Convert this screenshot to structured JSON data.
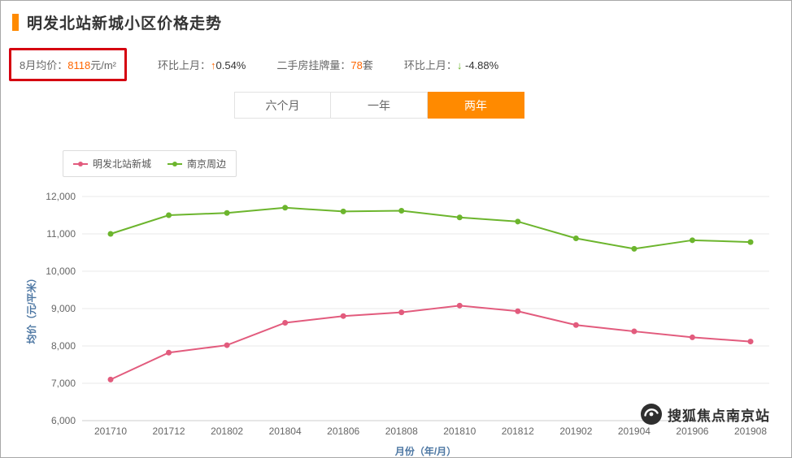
{
  "page": {
    "title": "明发北站新城小区价格走势"
  },
  "colors": {
    "accent_orange": "#ff8a00",
    "value_orange": "#ff6600",
    "down_green": "#6cb52d",
    "highlight_box_red": "#d50010",
    "series_pink": "#e25b7d",
    "series_green": "#6cb52d",
    "axis_title_blue": "#4d77a3"
  },
  "stats": {
    "avg_label": "8月均价：",
    "avg_value": "8118",
    "avg_unit": "元/m²",
    "mom_price_label": "环比上月：",
    "mom_price_arrow": "↑",
    "mom_price_value": "0.54%",
    "listing_label": "二手房挂牌量：",
    "listing_value": "78",
    "listing_unit": "套",
    "mom_listing_label": "环比上月：",
    "mom_listing_arrow": "↓",
    "mom_listing_value": " -4.88%"
  },
  "tabs": [
    {
      "label": "六个月",
      "active": false
    },
    {
      "label": "一年",
      "active": false
    },
    {
      "label": "两年",
      "active": true
    }
  ],
  "legend": [
    {
      "label": "明发北站新城",
      "color": "#e25b7d"
    },
    {
      "label": "南京周边",
      "color": "#6cb52d"
    }
  ],
  "watermark": "搜狐焦点南京站",
  "chart_data": {
    "type": "line",
    "x": [
      "201710",
      "201712",
      "201802",
      "201804",
      "201806",
      "201808",
      "201810",
      "201812",
      "201902",
      "201904",
      "201906",
      "201908"
    ],
    "series": [
      {
        "name": "明发北站新城",
        "color": "#e25b7d",
        "values": [
          7100,
          7820,
          8020,
          8620,
          8800,
          8900,
          9080,
          8930,
          8560,
          8390,
          8230,
          8118
        ]
      },
      {
        "name": "南京周边",
        "color": "#6cb52d",
        "values": [
          11000,
          11500,
          11560,
          11700,
          11600,
          11620,
          11440,
          11330,
          10880,
          10600,
          10830,
          10780
        ]
      }
    ],
    "title": "明发北站新城小区价格走势",
    "xlabel": "月份（年/月）",
    "ylabel": "均价（元/平米）",
    "ylim": [
      6000,
      12000
    ],
    "ytick_step": 1000,
    "grid": true,
    "legend_position": "top-left"
  }
}
